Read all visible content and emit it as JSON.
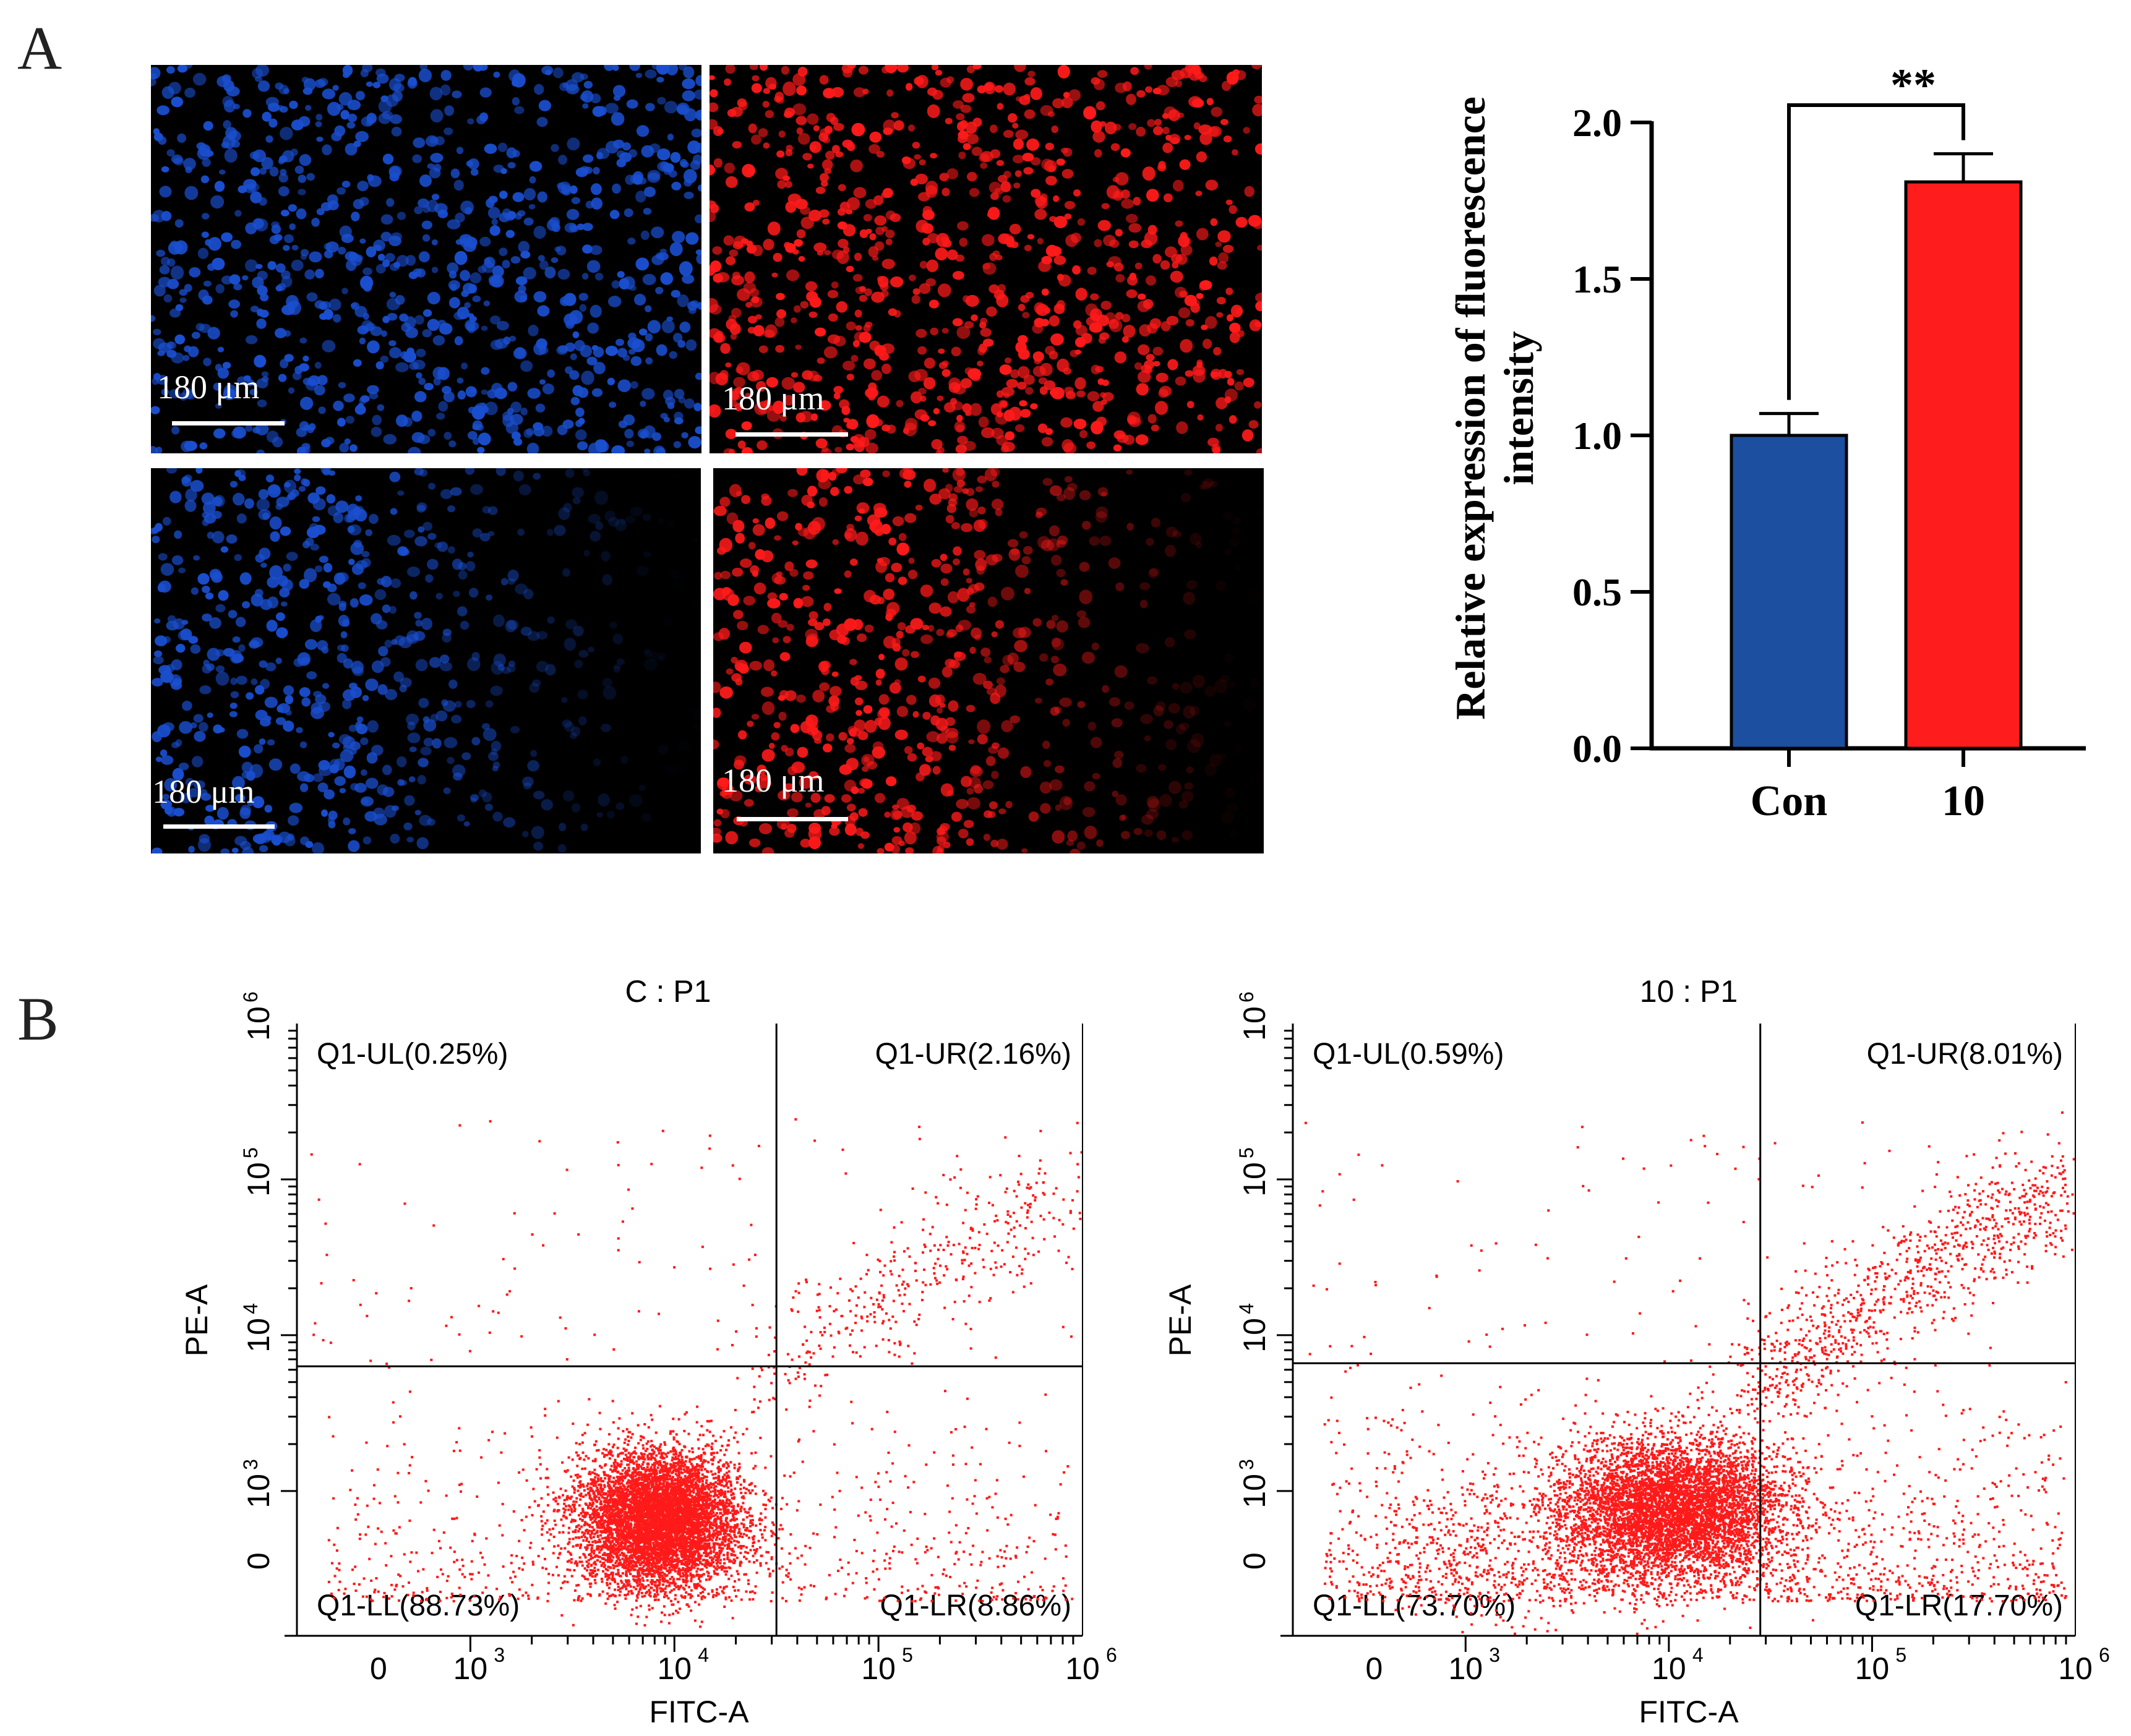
{
  "figure": {
    "panel_a_label": "A",
    "panel_b_label": "B"
  },
  "micrographs": [
    {
      "name": "con-blue",
      "stain_color": "#1a4fd0",
      "scale_text": "180 μm"
    },
    {
      "name": "con-red",
      "stain_color": "#ff1a1a",
      "scale_text": "180 μm"
    },
    {
      "name": "treated-blue",
      "stain_color": "#1a4fd0",
      "scale_text": "180 μm"
    },
    {
      "name": "treated-red",
      "stain_color": "#ff1a1a",
      "scale_text": "180 μm"
    }
  ],
  "chart_data": [
    {
      "type": "bar",
      "title": "",
      "categories": [
        "Con",
        "10"
      ],
      "values": [
        1.0,
        1.81
      ],
      "errors": [
        0.07,
        0.09
      ],
      "colors": [
        "#1c4fa0",
        "#ff1c1c"
      ],
      "ylabel_line1": "Relative expression of fluorescence",
      "ylabel_line2": "intensity",
      "ylim": [
        0,
        2.0
      ],
      "yticks": [
        "0.0",
        "0.5",
        "1.0",
        "1.5",
        "2.0"
      ],
      "significance": "**"
    },
    {
      "type": "scatter",
      "title": "C : P1",
      "xlabel": "FITC-A",
      "ylabel": "PE-A",
      "x_ticks": [
        "0",
        "10",
        "10",
        "10",
        "10"
      ],
      "x_tick_exps": [
        "",
        "3",
        "4",
        "5",
        "6"
      ],
      "y_ticks": [
        "0",
        "10",
        "10",
        "10",
        "10"
      ],
      "y_tick_exps": [
        "",
        "3",
        "4",
        "5",
        "6"
      ],
      "quadrants": {
        "UL": "Q1-UL(0.25%)",
        "UR": "Q1-UR(2.16%)",
        "LL": "Q1-LL(88.73%)",
        "LR": "Q1-LR(8.86%)"
      },
      "gate_x_log": 4.5,
      "gate_y_log": 3.8
    },
    {
      "type": "scatter",
      "title": "10 : P1",
      "xlabel": "FITC-A",
      "ylabel": "PE-A",
      "x_ticks": [
        "0",
        "10",
        "10",
        "10",
        "10"
      ],
      "x_tick_exps": [
        "",
        "3",
        "4",
        "5",
        "6"
      ],
      "y_ticks": [
        "0",
        "10",
        "10",
        "10",
        "10"
      ],
      "y_tick_exps": [
        "",
        "3",
        "4",
        "5",
        "6"
      ],
      "quadrants": {
        "UL": "Q1-UL(0.59%)",
        "UR": "Q1-UR(8.01%)",
        "LL": "Q1-LL(73.70%)",
        "LR": "Q1-LR(17.70%)"
      },
      "gate_x_log": 4.45,
      "gate_y_log": 3.82
    }
  ]
}
